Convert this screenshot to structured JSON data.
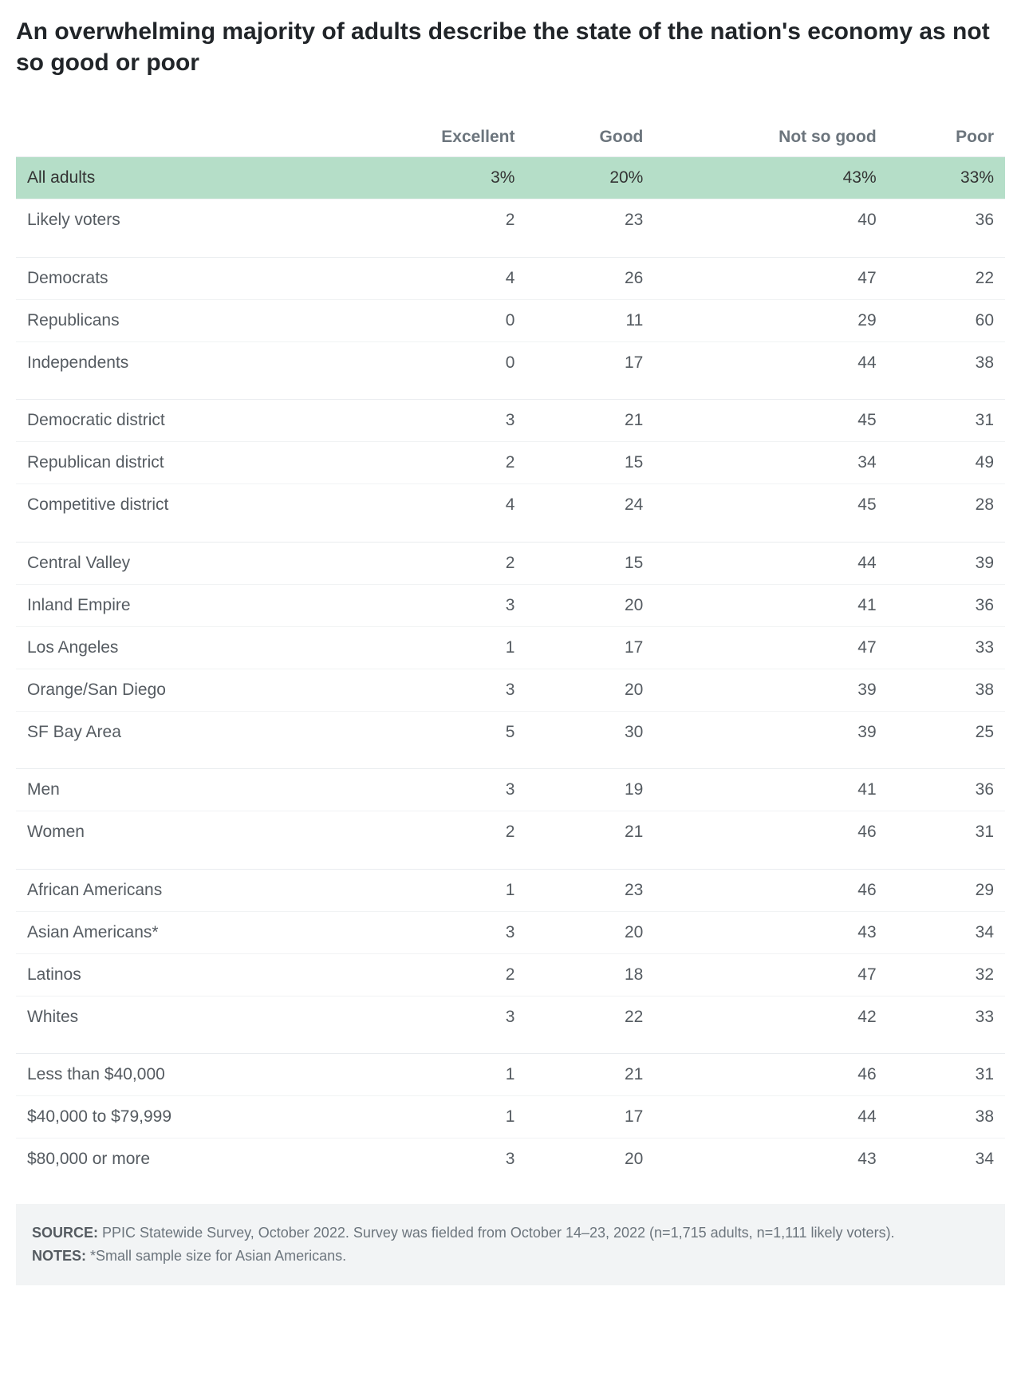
{
  "title": "An overwhelming majority of adults describe the state of the nation's economy as not so good or poor",
  "columns": [
    "",
    "Excellent",
    "Good",
    "Not so good",
    "Poor"
  ],
  "highlight_color": "#b5dec8",
  "groups": [
    [
      {
        "label": "All adults",
        "values": [
          "3%",
          "20%",
          "43%",
          "33%"
        ],
        "highlight": true
      },
      {
        "label": "Likely voters",
        "values": [
          "2",
          "23",
          "40",
          "36"
        ]
      }
    ],
    [
      {
        "label": "Democrats",
        "values": [
          "4",
          "26",
          "47",
          "22"
        ]
      },
      {
        "label": "Republicans",
        "values": [
          "0",
          "11",
          "29",
          "60"
        ]
      },
      {
        "label": "Independents",
        "values": [
          "0",
          "17",
          "44",
          "38"
        ]
      }
    ],
    [
      {
        "label": "Democratic district",
        "values": [
          "3",
          "21",
          "45",
          "31"
        ]
      },
      {
        "label": "Republican district",
        "values": [
          "2",
          "15",
          "34",
          "49"
        ]
      },
      {
        "label": "Competitive district",
        "values": [
          "4",
          "24",
          "45",
          "28"
        ]
      }
    ],
    [
      {
        "label": "Central Valley",
        "values": [
          "2",
          "15",
          "44",
          "39"
        ]
      },
      {
        "label": "Inland Empire",
        "values": [
          "3",
          "20",
          "41",
          "36"
        ]
      },
      {
        "label": "Los Angeles",
        "values": [
          "1",
          "17",
          "47",
          "33"
        ]
      },
      {
        "label": "Orange/San Diego",
        "values": [
          "3",
          "20",
          "39",
          "38"
        ]
      },
      {
        "label": "SF Bay Area",
        "values": [
          "5",
          "30",
          "39",
          "25"
        ]
      }
    ],
    [
      {
        "label": "Men",
        "values": [
          "3",
          "19",
          "41",
          "36"
        ]
      },
      {
        "label": "Women",
        "values": [
          "2",
          "21",
          "46",
          "31"
        ]
      }
    ],
    [
      {
        "label": "African Americans",
        "values": [
          "1",
          "23",
          "46",
          "29"
        ]
      },
      {
        "label": "Asian Americans*",
        "values": [
          "3",
          "20",
          "43",
          "34"
        ]
      },
      {
        "label": "Latinos",
        "values": [
          "2",
          "18",
          "47",
          "32"
        ]
      },
      {
        "label": "Whites",
        "values": [
          "3",
          "22",
          "42",
          "33"
        ]
      }
    ],
    [
      {
        "label": "Less than $40,000",
        "values": [
          "1",
          "21",
          "46",
          "31"
        ]
      },
      {
        "label": "$40,000 to $79,999",
        "values": [
          "1",
          "17",
          "44",
          "38"
        ]
      },
      {
        "label": "$80,000 or more",
        "values": [
          "3",
          "20",
          "43",
          "34"
        ]
      }
    ]
  ],
  "footer": {
    "source_label": "SOURCE:",
    "source_text": " PPIC Statewide Survey, October 2022. Survey was fielded from October 14–23, 2022 (n=1,715 adults, n=1,111 likely voters).",
    "notes_label": "NOTES:",
    "notes_text": " *Small sample size for Asian Americans."
  }
}
